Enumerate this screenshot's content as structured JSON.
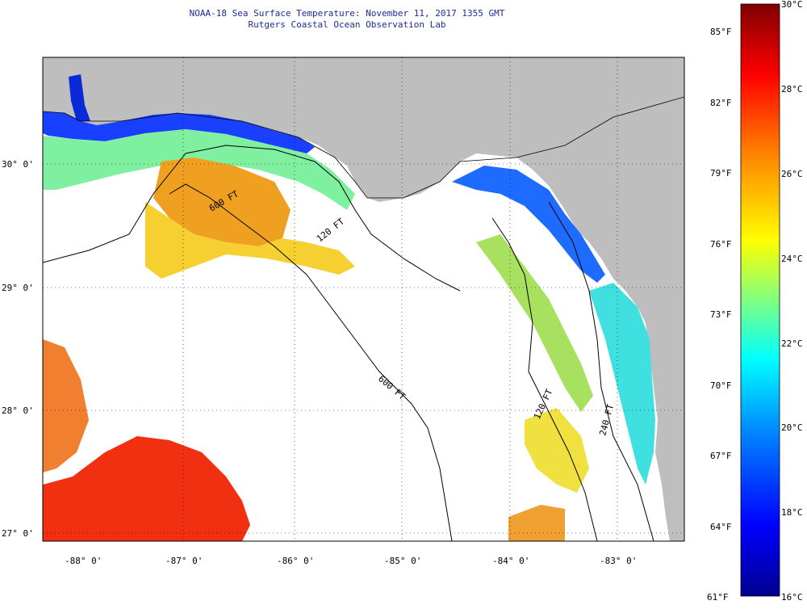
{
  "title": {
    "line1": "NOAA-18 Sea Surface Temperature:  November 11, 2017 1355 GMT",
    "line2": "Rutgers Coastal Ocean Observation Lab"
  },
  "map": {
    "type": "sea-surface-temperature map",
    "lon_range": [
      -88.3,
      -82.4
    ],
    "lat_range": [
      26.95,
      30.85
    ],
    "lon_ticks": [
      "-88° 0'",
      "-87° 0'",
      "-86° 0'",
      "-85° 0'",
      "-84° 0'",
      "-83° 0'"
    ],
    "lat_ticks": [
      "30° 0'",
      "29° 0'",
      "28° 0'",
      "27° 0'"
    ],
    "lon_values": [
      -88,
      -87,
      -86,
      -85,
      -84,
      -83
    ],
    "lat_values": [
      30,
      29,
      28,
      27
    ],
    "contours": [
      {
        "label": "120 FT",
        "depth_ft": 120
      },
      {
        "label": "600 FT",
        "depth_ft": 600
      },
      {
        "label": "600 FT",
        "depth_ft": 600
      },
      {
        "label": "120 FT",
        "depth_ft": 120
      },
      {
        "label": "240 FT",
        "depth_ft": 240
      }
    ],
    "colors": {
      "land": "#bebebe",
      "cloud": "#ffffff"
    }
  },
  "colorbar": {
    "celsius": [
      "30°C",
      "28°C",
      "26°C",
      "24°C",
      "22°C",
      "20°C",
      "18°C",
      "16°C"
    ],
    "fahrenheit": [
      "85°F",
      "82°F",
      "79°F",
      "76°F",
      "73°F",
      "70°F",
      "67°F",
      "64°F",
      "61°F"
    ],
    "celsius_range": [
      16,
      30
    ],
    "colors": [
      "#000090",
      "#0000ff",
      "#0080ff",
      "#00ffff",
      "#80ff80",
      "#ffff00",
      "#ff8000",
      "#ff0000",
      "#800000"
    ]
  }
}
